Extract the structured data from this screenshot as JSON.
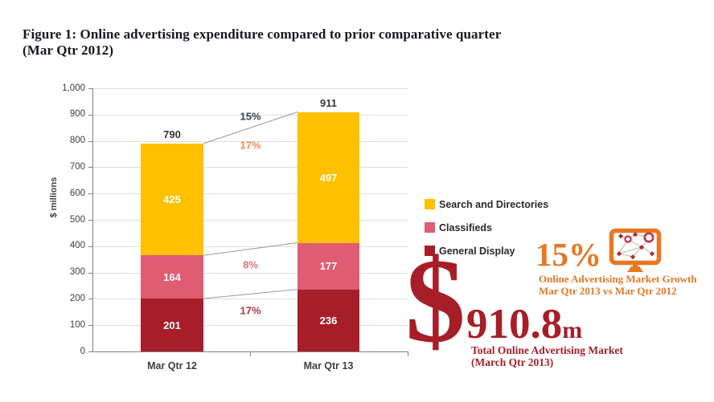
{
  "title": {
    "line1": "Figure 1: Online advertising expenditure compared to prior comparative quarter",
    "line2": "(Mar Qtr 2012)"
  },
  "chart_data": {
    "type": "bar",
    "stacked": true,
    "categories": [
      "Mar Qtr 12",
      "Mar Qtr 13"
    ],
    "series": [
      {
        "name": "General Display",
        "color": "#A61E28",
        "values": [
          201,
          236
        ]
      },
      {
        "name": "Classifieds",
        "color": "#E05C72",
        "values": [
          164,
          177
        ]
      },
      {
        "name": "Search and Directories",
        "color": "#FFC000",
        "values": [
          425,
          497
        ]
      }
    ],
    "totals": [
      790,
      911
    ],
    "title": "",
    "xlabel": "",
    "ylabel": "$ millions",
    "ylim": [
      0,
      1000
    ],
    "ytick_labels": [
      "0",
      "100",
      "200",
      "300",
      "400",
      "500",
      "600",
      "700",
      "800",
      "900",
      "1,000"
    ],
    "grid": true,
    "legend_position": "right",
    "growth_annotations": [
      {
        "label": "15%",
        "color": "#3A4154",
        "boundary": "total",
        "side": "above"
      },
      {
        "label": "17%",
        "color": "#ED8B51",
        "boundary": "total",
        "side": "below"
      },
      {
        "label": "8%",
        "color": "#E46F88",
        "boundary": "classifieds-top",
        "side": "below"
      },
      {
        "label": "17%",
        "color": "#A63B44",
        "boundary": "display-top",
        "side": "below"
      }
    ]
  },
  "infographic": {
    "growth_pct": "15%",
    "growth_caption_line1": "Online Advertising Market Growth",
    "growth_caption_line2": "Mar Qtr 2013 vs Mar Qtr 2012",
    "market_currency": "$",
    "market_value": "910.8",
    "market_unit": "m",
    "market_caption_line1": "Total Online Advertising Market",
    "market_caption_line2": "(March Qtr 2013)",
    "accent_orange": "#E87722",
    "accent_dark_red": "#A61E28",
    "monitor_icon": "monitor-network-icon"
  }
}
